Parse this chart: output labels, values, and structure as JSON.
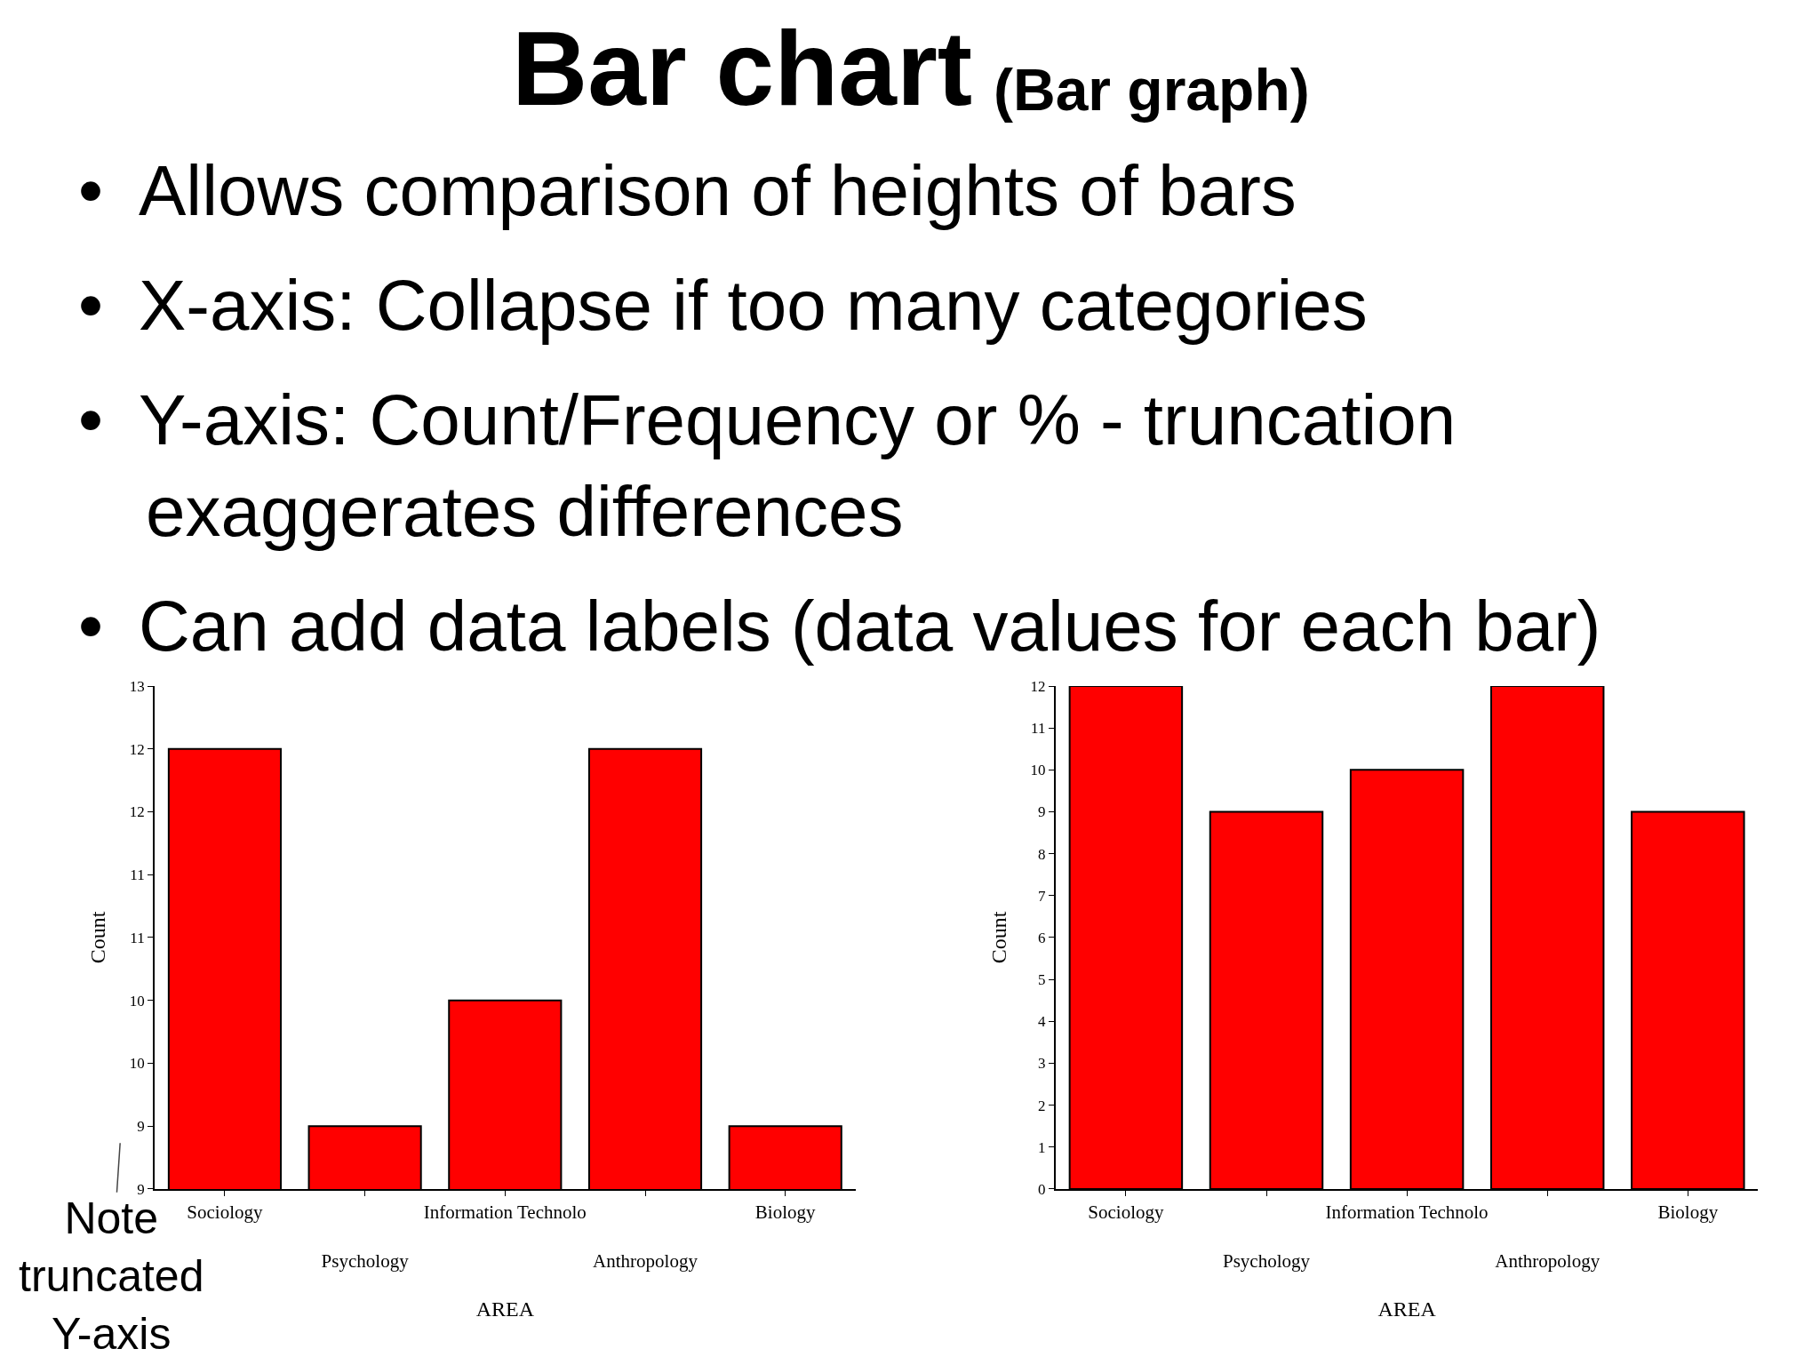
{
  "chart_data": [
    {
      "type": "bar",
      "title": "Bar chart",
      "annotations": [
        "• Allows comparison of heights of bars",
        "• X-axis: Collapse if too many categories",
        "• Y-axis: Count/Frequency or % - truncation exaggerates differences",
        "• Can add data labels (data values for each bar)",
        "Note truncated Y-axis"
      ],
      "categories": [
        "Sociology",
        "Psychology",
        "Information Technolo",
        "Anthropology",
        "Biology"
      ],
      "values": [
        12,
        9,
        10,
        12,
        9
      ],
      "color": "#ff0000",
      "xlabel": "AREA",
      "ylabel": "Count",
      "ylim": [
        8.5,
        12.5
      ],
      "yticks": [
        {
          "value": 8.5,
          "label": "9"
        },
        {
          "value": 9,
          "label": "9"
        },
        {
          "value": 9.5,
          "label": "10"
        },
        {
          "value": 10,
          "label": "10"
        },
        {
          "value": 10.5,
          "label": "11"
        },
        {
          "value": 11,
          "label": "11"
        },
        {
          "value": 11.5,
          "label": "12"
        },
        {
          "value": 12,
          "label": "12"
        },
        {
          "value": 12.5,
          "label": "13"
        }
      ]
    },
    {
      "type": "bar",
      "subtitle": "(Bar graph)",
      "categories": [
        "Sociology",
        "Psychology",
        "Information Technolo",
        "Anthropology",
        "Biology"
      ],
      "values": [
        12,
        9,
        10,
        12,
        9
      ],
      "color": "#ff0000",
      "xlabel": "AREA",
      "ylabel": "Count",
      "ylim": [
        0,
        12
      ],
      "yticks": [
        0,
        1,
        2,
        3,
        4,
        5,
        6,
        7,
        8,
        9,
        10,
        11,
        12
      ]
    }
  ]
}
